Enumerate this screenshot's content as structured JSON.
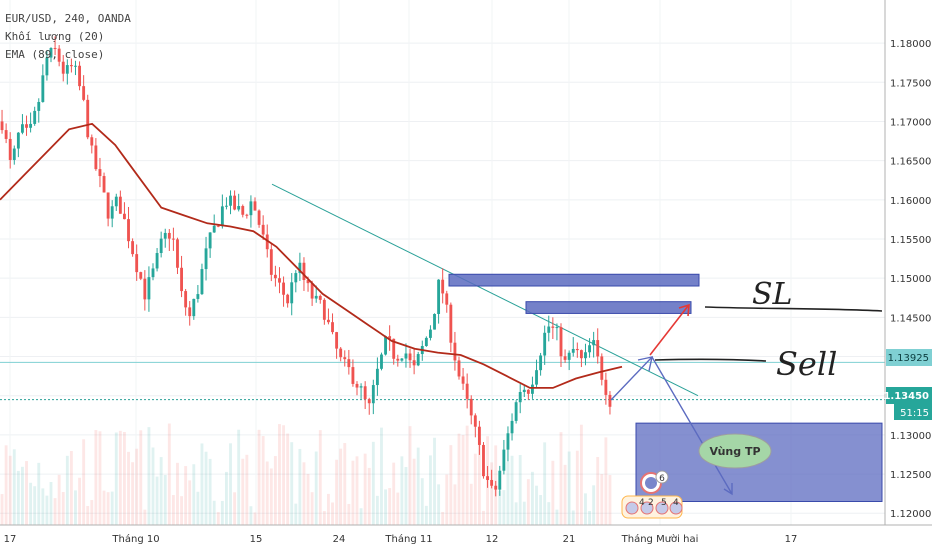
{
  "legend": {
    "symbol_line": "EUR/USD, 240, OANDA",
    "volume_line": "Khối lượng (20)",
    "ema_line": "EMA (89, close)"
  },
  "price_axis": {
    "ticks": [
      "1.18000",
      "1.17500",
      "1.17000",
      "1.16500",
      "1.16000",
      "1.15500",
      "1.15000",
      "1.14500",
      "1.14000",
      "1.13500",
      "1.13000",
      "1.12500",
      "1.12000"
    ],
    "tag_level": "1.13925",
    "tag_last": "1.13450",
    "tag_timer": "51:15"
  },
  "time_axis": {
    "ticks": [
      "17",
      "Tháng 10",
      "15",
      "24",
      "Tháng 11",
      "12",
      "21",
      "Tháng Mười hai",
      "17"
    ]
  },
  "annotations": {
    "sl_text": "SL",
    "sell_text": "Sell",
    "tp_label": "Vùng TP",
    "badge_top": "6",
    "badge_row": [
      "4",
      "2",
      "5",
      "4"
    ]
  },
  "colors": {
    "bull": "#26a69a",
    "bear": "#ef5350",
    "ema": "#b22a1a",
    "trendline": "#2aa198",
    "box_fill": "#5c6bc0",
    "level_line": "#7fd0d3",
    "arrow_up": "#e53935",
    "arrow_down": "#5c6bc0"
  },
  "chart_data": {
    "type": "candlestick",
    "ylim": [
      1.1185,
      1.1855
    ],
    "close_path": [
      1.17,
      1.164,
      1.169,
      1.168,
      1.172,
      1.178,
      1.179,
      1.176,
      1.177,
      1.173,
      1.166,
      1.162,
      1.158,
      1.16,
      1.156,
      1.152,
      1.148,
      1.151,
      1.155,
      1.156,
      1.148,
      1.145,
      1.149,
      1.154,
      1.157,
      1.16,
      1.159,
      1.158,
      1.16,
      1.156,
      1.151,
      1.149,
      1.147,
      1.152,
      1.149,
      1.147,
      1.146,
      1.142,
      1.139,
      1.138,
      1.136,
      1.133,
      1.138,
      1.142,
      1.14,
      1.141,
      1.138,
      1.141,
      1.144,
      1.15,
      1.144,
      1.138,
      1.134,
      1.13,
      1.125,
      1.122,
      1.127,
      1.132,
      1.136,
      1.136,
      1.14,
      1.144,
      1.143,
      1.139,
      1.141,
      1.139,
      1.142,
      1.138,
      1.1345
    ],
    "ema_path": [
      1.16,
      1.163,
      1.166,
      1.169,
      1.1697,
      1.167,
      1.163,
      1.159,
      1.158,
      1.157,
      1.1566,
      1.156,
      1.154,
      1.151,
      1.148,
      1.146,
      1.144,
      1.142,
      1.141,
      1.1405,
      1.1402,
      1.139,
      1.1375,
      1.136,
      1.136,
      1.1372,
      1.138,
      1.1387
    ],
    "horizontal_levels": [
      1.13925,
      1.1345
    ],
    "zones": [
      {
        "name": "upper",
        "from": 1.149,
        "to": 1.1505
      },
      {
        "name": "lower",
        "from": 1.1455,
        "to": 1.147
      },
      {
        "name": "tp",
        "from": 1.1215,
        "to": 1.1315
      }
    ]
  }
}
